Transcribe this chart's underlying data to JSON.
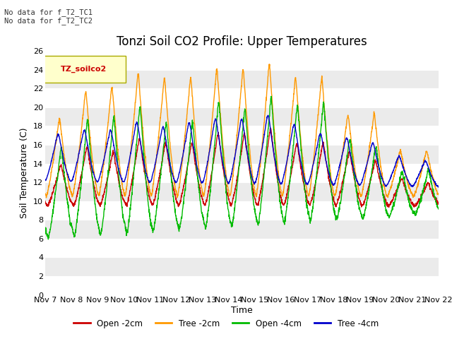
{
  "title": "Tonzi Soil CO2 Profile: Upper Temperatures",
  "ylabel": "Soil Temperature (C)",
  "xlabel": "Time",
  "top_left_text": "No data for f_T2_TC1\nNo data for f_T2_TC2",
  "legend_box_label": "TZ_soilco2",
  "ylim": [
    0,
    26
  ],
  "yticks": [
    0,
    2,
    4,
    6,
    8,
    10,
    12,
    14,
    16,
    18,
    20,
    22,
    24,
    26
  ],
  "xtick_labels": [
    "Nov 7",
    "Nov 8",
    "Nov 9",
    "Nov 10",
    "Nov 11",
    "Nov 12",
    "Nov 13",
    "Nov 14",
    "Nov 15",
    "Nov 16",
    "Nov 17",
    "Nov 18",
    "Nov 19",
    "Nov 20",
    "Nov 21",
    "Nov 22"
  ],
  "series_colors": {
    "open_2cm": "#cc0000",
    "tree_2cm": "#ff9900",
    "open_4cm": "#00bb00",
    "tree_4cm": "#0000cc"
  },
  "series_labels": [
    "Open -2cm",
    "Tree -2cm",
    "Open -4cm",
    "Tree -4cm"
  ],
  "plot_bg_color": "#ebebeb",
  "grid_color": "#ffffff",
  "title_fontsize": 12,
  "axis_fontsize": 9,
  "tick_fontsize": 8,
  "n_days": 15,
  "pts_per_day": 144
}
